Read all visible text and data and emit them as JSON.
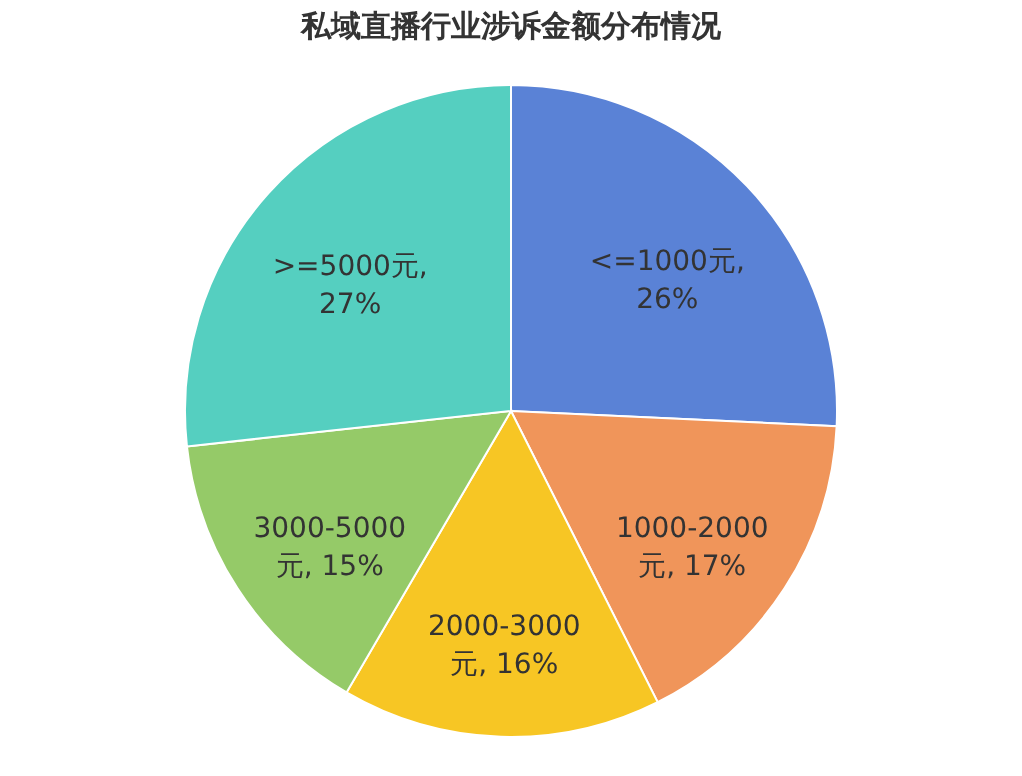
{
  "chart_data": {
    "type": "pie",
    "title": "私域直播行业涉诉金额分布情况",
    "categories": [
      "<=1000元, 26%",
      "1000-2000元, 17%",
      "2000-3000元, 16%",
      "3000-5000元, 15%",
      ">=5000元, 27%"
    ],
    "values": [
      26,
      17,
      16,
      15,
      27
    ],
    "colors": [
      "#5a82d6",
      "#f0955a",
      "#f7c624",
      "#95ca68",
      "#55cfc0"
    ],
    "legend": false
  }
}
